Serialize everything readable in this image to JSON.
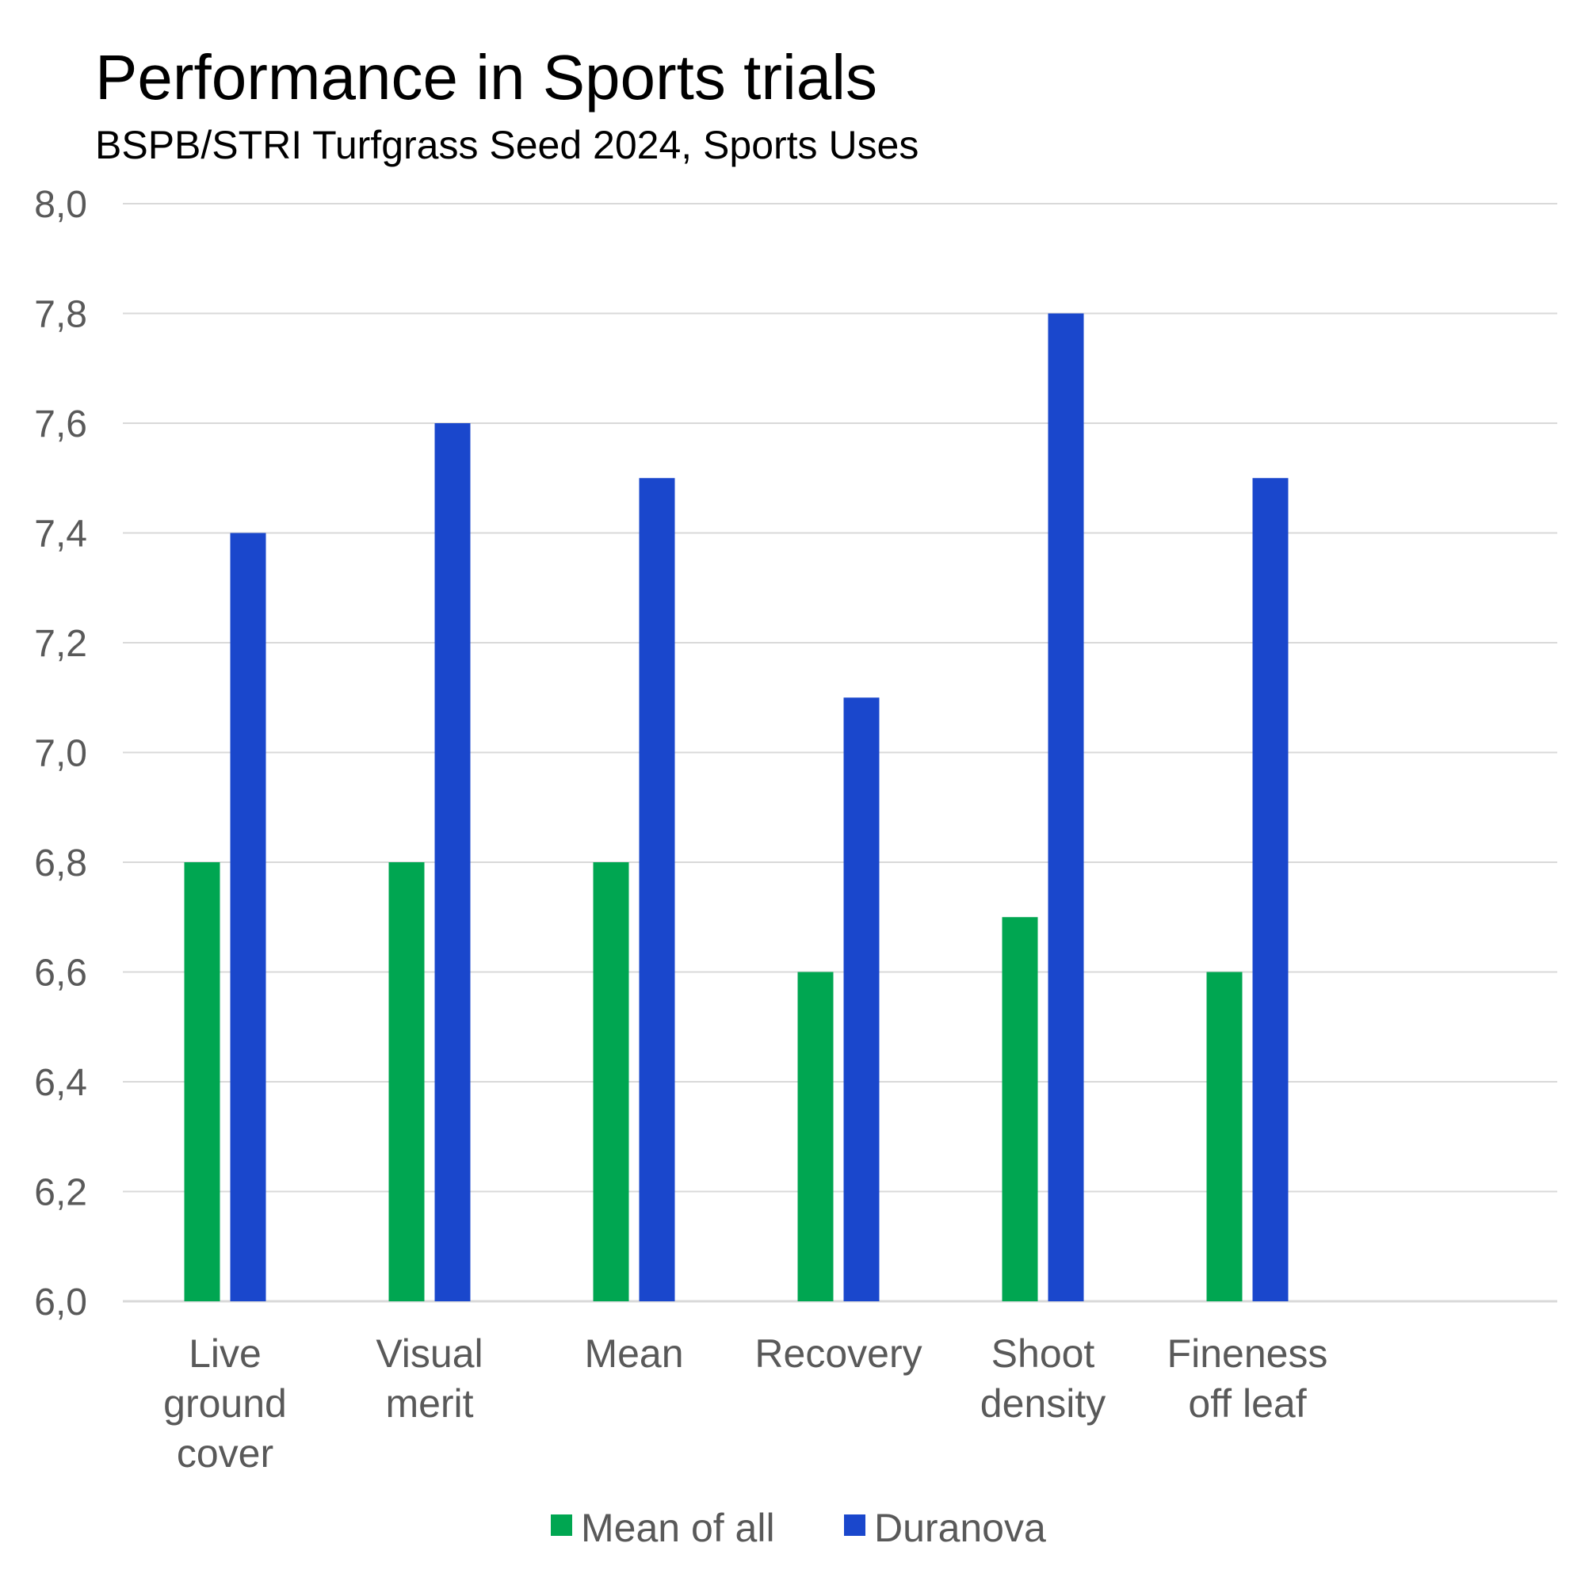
{
  "chart_data": {
    "type": "bar",
    "title": "Performance in Sports trials",
    "subtitle": "BSPB/STRI Turfgrass Seed 2024, Sports Uses",
    "xlabel": "",
    "ylabel": "",
    "categories": [
      [
        "Live",
        "ground",
        "cover"
      ],
      [
        "Visual",
        "merit"
      ],
      [
        "Mean"
      ],
      [
        "Recovery"
      ],
      [
        "Shoot",
        "density"
      ],
      [
        "Fineness",
        "off leaf"
      ]
    ],
    "series": [
      {
        "name": "Mean of all",
        "color": "#00a651",
        "values": [
          6.8,
          6.8,
          6.8,
          6.6,
          6.7,
          6.6
        ]
      },
      {
        "name": "Duranova",
        "color": "#1a47cc",
        "values": [
          7.4,
          7.6,
          7.5,
          7.1,
          7.8,
          7.5
        ]
      }
    ],
    "ylim": [
      6.0,
      8.0
    ],
    "yticks": [
      "6,0",
      "6,2",
      "6,4",
      "6,6",
      "6,8",
      "7,0",
      "7,2",
      "7,4",
      "7,6",
      "7,8",
      "8,0"
    ],
    "grid": true,
    "legend_position": "bottom",
    "colors": {
      "grid": "#d9d9d9",
      "text": "#595959"
    }
  }
}
